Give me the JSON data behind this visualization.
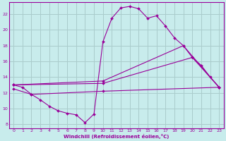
{
  "xlabel": "Windchill (Refroidissement éolien,°C)",
  "background_color": "#c8ecec",
  "line_color": "#990099",
  "grid_color": "#aacccc",
  "xlim": [
    -0.5,
    23.5
  ],
  "ylim": [
    7.5,
    23.5
  ],
  "xticks": [
    0,
    1,
    2,
    3,
    4,
    5,
    6,
    7,
    8,
    9,
    10,
    11,
    12,
    13,
    14,
    15,
    16,
    17,
    18,
    19,
    20,
    21,
    22,
    23
  ],
  "yticks": [
    8,
    10,
    12,
    14,
    16,
    18,
    20,
    22
  ],
  "series1": [
    [
      0,
      13.0
    ],
    [
      1,
      12.7
    ],
    [
      2,
      11.8
    ],
    [
      3,
      11.1
    ],
    [
      4,
      10.3
    ],
    [
      5,
      9.7
    ],
    [
      6,
      9.4
    ],
    [
      7,
      9.2
    ],
    [
      8,
      8.2
    ],
    [
      9,
      9.3
    ],
    [
      10,
      18.5
    ],
    [
      11,
      21.5
    ],
    [
      12,
      22.8
    ],
    [
      13,
      23.0
    ],
    [
      14,
      22.7
    ],
    [
      15,
      21.5
    ],
    [
      16,
      21.8
    ],
    [
      17,
      20.5
    ],
    [
      18,
      19.0
    ],
    [
      19,
      18.0
    ],
    [
      20,
      16.5
    ],
    [
      21,
      15.5
    ],
    [
      22,
      14.0
    ],
    [
      23,
      12.7
    ]
  ],
  "series2": [
    [
      0,
      13.0
    ],
    [
      10,
      13.5
    ],
    [
      19,
      18.0
    ],
    [
      23,
      12.7
    ]
  ],
  "series3": [
    [
      0,
      13.0
    ],
    [
      10,
      13.2
    ],
    [
      20,
      16.5
    ],
    [
      23,
      12.7
    ]
  ],
  "series4": [
    [
      0,
      12.5
    ],
    [
      2,
      11.8
    ],
    [
      10,
      12.2
    ],
    [
      23,
      12.7
    ]
  ]
}
